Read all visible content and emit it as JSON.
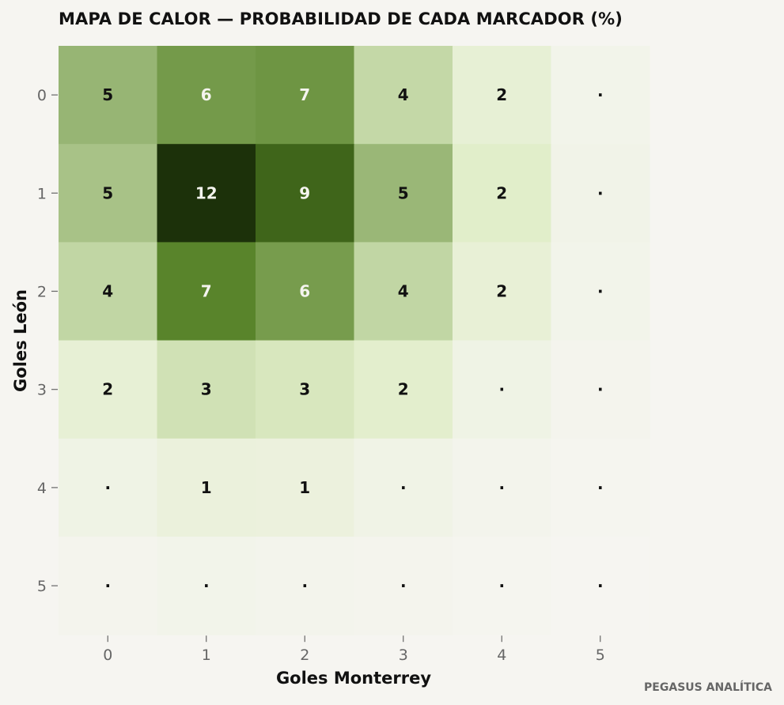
{
  "chart_data": {
    "type": "heatmap",
    "title": "MAPA DE CALOR — PROBABILIDAD DE CADA MARCADOR (%)",
    "xlabel": "Goles Monterrey",
    "ylabel": "Goles León",
    "x_categories": [
      "0",
      "1",
      "2",
      "3",
      "4",
      "5"
    ],
    "y_categories": [
      "0",
      "1",
      "2",
      "3",
      "4",
      "5"
    ],
    "values": [
      [
        5.2,
        6.4,
        6.6,
        3.5,
        1.6,
        0.4
      ],
      [
        4.6,
        12.1,
        9.3,
        5.1,
        2.2,
        0.5
      ],
      [
        3.6,
        7.4,
        6.3,
        3.6,
        1.5,
        0.4
      ],
      [
        1.6,
        3.0,
        2.7,
        2.0,
        0.7,
        0.2
      ],
      [
        0.7,
        1.2,
        1.1,
        0.6,
        0.3,
        0.1
      ],
      [
        0.2,
        0.4,
        0.3,
        0.2,
        0.1,
        0.0
      ]
    ],
    "cell_labels": [
      [
        "5",
        "6",
        "7",
        "4",
        "2",
        "·"
      ],
      [
        "5",
        "12",
        "9",
        "5",
        "2",
        "·"
      ],
      [
        "4",
        "7",
        "6",
        "4",
        "2",
        "·"
      ],
      [
        "2",
        "3",
        "3",
        "2",
        "·",
        "·"
      ],
      [
        "·",
        "1",
        "1",
        "·",
        "·",
        "·"
      ],
      [
        "·",
        "·",
        "·",
        "·",
        "·",
        "·"
      ]
    ],
    "vmin": 0,
    "vmax": 12.1,
    "colormap": [
      "#f6f5f1",
      "#dfedc6",
      "#a2bd80",
      "#5b862c",
      "#3a5f17",
      "#1c310a"
    ],
    "label_colors": {
      "dark": "#111111",
      "light": "#f4f4ee"
    },
    "grid": false,
    "legend": "none"
  },
  "credit": "PEGASUS ANALÍTICA"
}
